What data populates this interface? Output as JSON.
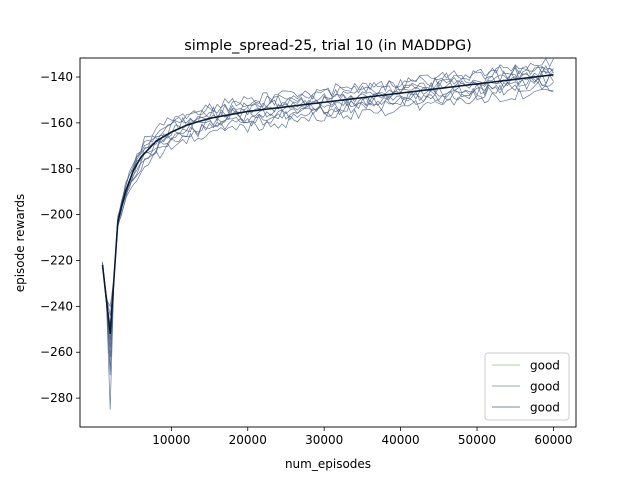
{
  "chart_data": {
    "type": "line",
    "title": "simple_spread-25, trial 10 (in MADDPG)",
    "xlabel": "num_episodes",
    "ylabel": "episode rewards",
    "xlim": [
      -1950,
      62950
    ],
    "ylim": [
      -292.6,
      -131.7
    ],
    "xticks": [
      10000,
      20000,
      30000,
      40000,
      50000,
      60000
    ],
    "xtick_labels": [
      "10000",
      "20000",
      "30000",
      "40000",
      "50000",
      "60000"
    ],
    "yticks": [
      -280,
      -260,
      -240,
      -220,
      -200,
      -180,
      -160,
      -140
    ],
    "ytick_labels": [
      "−280",
      "−260",
      "−240",
      "−220",
      "−200",
      "−180",
      "−160",
      "−140"
    ],
    "grid": false,
    "legend": {
      "placement": "lower-right",
      "entries": [
        {
          "label": "good",
          "color": "#b5cfa0"
        },
        {
          "label": "good",
          "color": "#9aa6cc"
        },
        {
          "label": "good",
          "color": "#7a8aa6"
        }
      ]
    },
    "colors": {
      "runs": "#4a5f86",
      "mean": "#0a1a33"
    },
    "runs": 10,
    "x": [
      1000,
      2000,
      3000,
      4000,
      5000,
      6000,
      8000,
      10000,
      12000,
      15000,
      20000,
      25000,
      30000,
      35000,
      40000,
      45000,
      50000,
      55000,
      60000
    ],
    "series": [
      {
        "values": [
          -222,
          -252,
          -203,
          -190,
          -181,
          -175,
          -168,
          -164,
          -161,
          -158,
          -155,
          -153,
          -151,
          -149,
          -147,
          -145,
          -143,
          -141,
          -139
        ]
      }
    ]
  }
}
